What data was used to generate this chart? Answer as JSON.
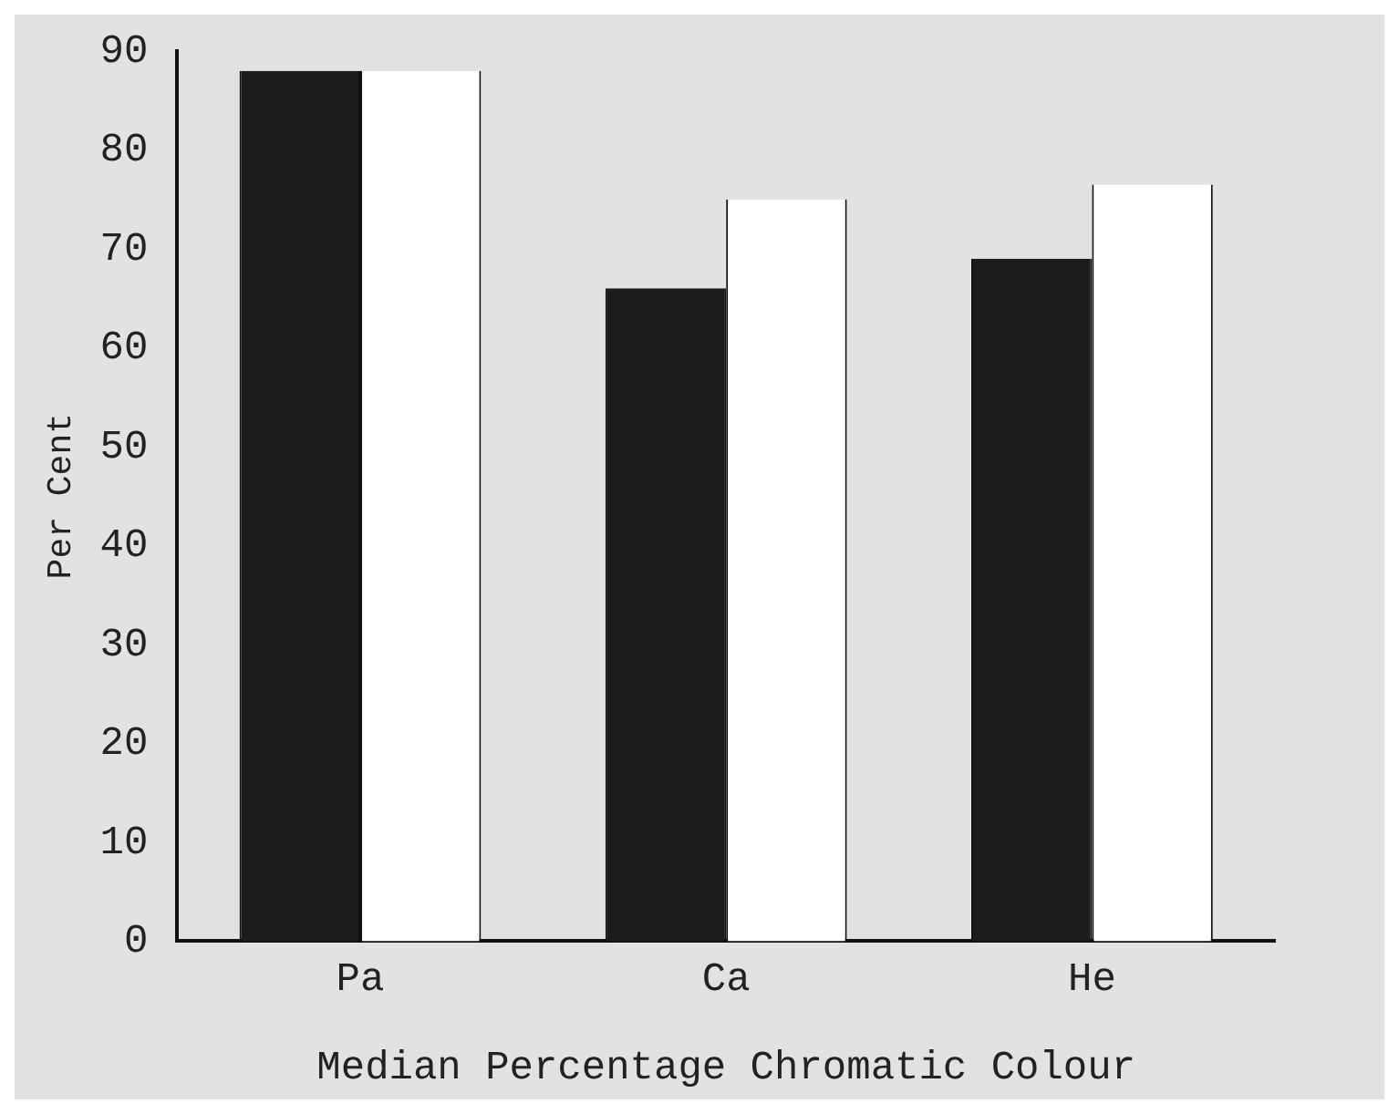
{
  "chart_data": {
    "type": "bar",
    "xlabel": "Median Percentage Chromatic Colour",
    "ylabel": "Per Cent",
    "categories": [
      "Pa",
      "Ca",
      "He"
    ],
    "series": [
      {
        "color": "#1c1c1c",
        "values": [
          88,
          66,
          69
        ]
      },
      {
        "color": "#ffffff",
        "values": [
          88,
          75,
          76.5
        ]
      }
    ],
    "ylim": [
      0,
      90
    ],
    "yticks": [
      0,
      10,
      20,
      30,
      40,
      50,
      60,
      70,
      80,
      90
    ],
    "grid": false,
    "legend": false
  }
}
